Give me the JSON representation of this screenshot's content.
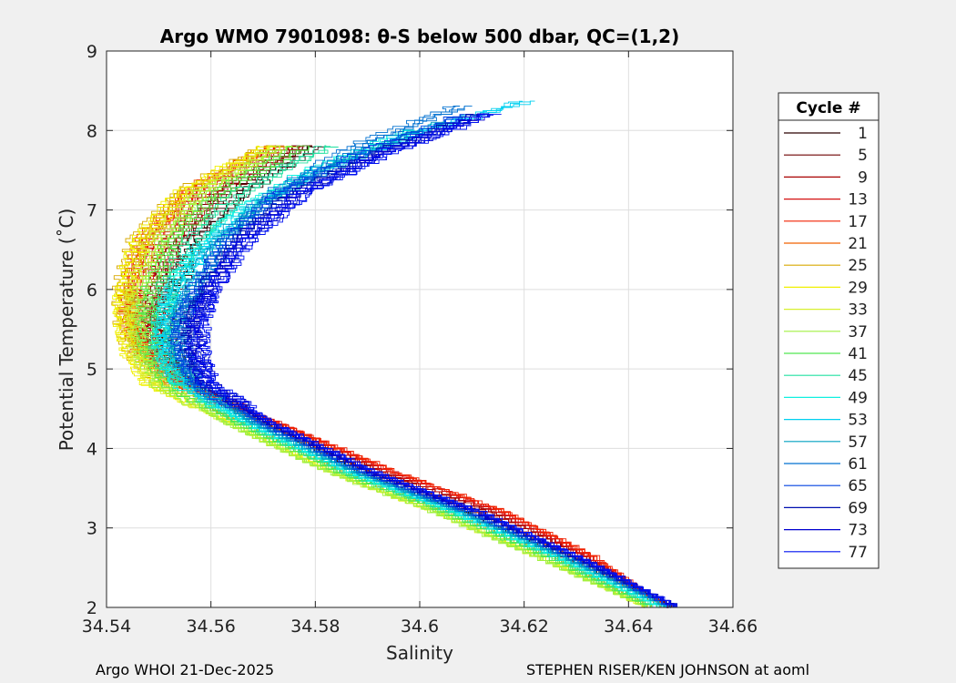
{
  "chart_data": {
    "type": "line",
    "title": "Argo WMO 7901098: θ-S below 500 dbar,  QC=(1,2)",
    "xlabel": "Salinity",
    "ylabel": "Potential Temperature (˚C)",
    "xlim": [
      34.54,
      34.66
    ],
    "ylim": [
      2,
      9
    ],
    "xticks": [
      34.54,
      34.56,
      34.58,
      34.6,
      34.62,
      34.64,
      34.66
    ],
    "xtick_labels": [
      "34.54",
      "34.56",
      "34.58",
      "34.6",
      "34.62",
      "34.64",
      "34.66"
    ],
    "yticks": [
      2,
      3,
      4,
      5,
      6,
      7,
      8,
      9
    ],
    "ytick_labels": [
      "2",
      "3",
      "4",
      "5",
      "6",
      "7",
      "8",
      "9"
    ],
    "grid": true,
    "legend": {
      "title": "Cycle #",
      "placement": "outside-right",
      "entries": [
        {
          "label": "1",
          "color": "#2a0000"
        },
        {
          "label": "5",
          "color": "#6e0000"
        },
        {
          "label": "9",
          "color": "#a80000"
        },
        {
          "label": "13",
          "color": "#d41010"
        },
        {
          "label": "17",
          "color": "#f02000"
        },
        {
          "label": "21",
          "color": "#f06000"
        },
        {
          "label": "25",
          "color": "#d8a800"
        },
        {
          "label": "29",
          "color": "#f0f000"
        },
        {
          "label": "33",
          "color": "#d8f030"
        },
        {
          "label": "37",
          "color": "#a0f040"
        },
        {
          "label": "41",
          "color": "#50e850"
        },
        {
          "label": "45",
          "color": "#20e0a0"
        },
        {
          "label": "49",
          "color": "#10f0e0"
        },
        {
          "label": "53",
          "color": "#00d0f0"
        },
        {
          "label": "57",
          "color": "#00a0c0"
        },
        {
          "label": "61",
          "color": "#0070d0"
        },
        {
          "label": "65",
          "color": "#0040e0"
        },
        {
          "label": "69",
          "color": "#0010b0"
        },
        {
          "label": "73",
          "color": "#0000d0"
        },
        {
          "label": "77",
          "color": "#0010f0"
        }
      ]
    },
    "series": [
      {
        "cycle": "1",
        "color": "#2a0000",
        "points": [
          [
            34.58,
            7.8
          ],
          [
            34.566,
            7.2
          ],
          [
            34.557,
            6.6
          ],
          [
            34.553,
            6.0
          ],
          [
            34.551,
            5.6
          ],
          [
            34.552,
            5.2
          ],
          [
            34.556,
            4.8
          ],
          [
            34.57,
            4.3
          ],
          [
            34.588,
            3.7
          ],
          [
            34.608,
            3.2
          ],
          [
            34.628,
            2.6
          ],
          [
            34.648,
            2.0
          ]
        ]
      },
      {
        "cycle": "5",
        "color": "#6e0000",
        "points": [
          [
            34.578,
            7.8
          ],
          [
            34.562,
            7.2
          ],
          [
            34.554,
            6.6
          ],
          [
            34.55,
            6.0
          ],
          [
            34.549,
            5.6
          ],
          [
            34.55,
            5.2
          ],
          [
            34.555,
            4.8
          ],
          [
            34.57,
            4.3
          ],
          [
            34.59,
            3.7
          ],
          [
            34.611,
            3.2
          ],
          [
            34.63,
            2.6
          ],
          [
            34.648,
            2.0
          ]
        ]
      },
      {
        "cycle": "9",
        "color": "#a80000",
        "points": [
          [
            34.576,
            7.8
          ],
          [
            34.56,
            7.2
          ],
          [
            34.552,
            6.6
          ],
          [
            34.548,
            6.0
          ],
          [
            34.547,
            5.6
          ],
          [
            34.549,
            5.2
          ],
          [
            34.555,
            4.8
          ],
          [
            34.572,
            4.3
          ],
          [
            34.592,
            3.7
          ],
          [
            34.613,
            3.2
          ],
          [
            34.632,
            2.6
          ],
          [
            34.647,
            2.0
          ]
        ]
      },
      {
        "cycle": "13",
        "color": "#d41010",
        "points": [
          [
            34.574,
            7.8
          ],
          [
            34.558,
            7.2
          ],
          [
            34.55,
            6.6
          ],
          [
            34.546,
            6.0
          ],
          [
            34.546,
            5.6
          ],
          [
            34.548,
            5.2
          ],
          [
            34.555,
            4.8
          ],
          [
            34.573,
            4.3
          ],
          [
            34.594,
            3.7
          ],
          [
            34.615,
            3.2
          ],
          [
            34.633,
            2.6
          ],
          [
            34.647,
            2.0
          ]
        ]
      },
      {
        "cycle": "17",
        "color": "#f02000",
        "points": [
          [
            34.573,
            7.8
          ],
          [
            34.556,
            7.2
          ],
          [
            34.548,
            6.6
          ],
          [
            34.545,
            6.0
          ],
          [
            34.545,
            5.6
          ],
          [
            34.547,
            5.2
          ],
          [
            34.554,
            4.8
          ],
          [
            34.573,
            4.3
          ],
          [
            34.595,
            3.7
          ],
          [
            34.616,
            3.2
          ],
          [
            34.634,
            2.6
          ],
          [
            34.647,
            2.0
          ]
        ]
      },
      {
        "cycle": "21",
        "color": "#f06000",
        "points": [
          [
            34.572,
            7.8
          ],
          [
            34.555,
            7.2
          ],
          [
            34.547,
            6.6
          ],
          [
            34.544,
            6.0
          ],
          [
            34.544,
            5.6
          ],
          [
            34.546,
            5.2
          ],
          [
            34.552,
            4.8
          ],
          [
            34.57,
            4.3
          ],
          [
            34.59,
            3.7
          ],
          [
            34.61,
            3.2
          ],
          [
            34.63,
            2.6
          ],
          [
            34.646,
            2.0
          ]
        ]
      },
      {
        "cycle": "25",
        "color": "#d8a800",
        "points": [
          [
            34.571,
            7.8
          ],
          [
            34.554,
            7.2
          ],
          [
            34.546,
            6.6
          ],
          [
            34.543,
            6.0
          ],
          [
            34.543,
            5.6
          ],
          [
            34.545,
            5.2
          ],
          [
            34.55,
            4.8
          ],
          [
            34.566,
            4.3
          ],
          [
            34.585,
            3.7
          ],
          [
            34.605,
            3.2
          ],
          [
            34.626,
            2.6
          ],
          [
            34.644,
            2.0
          ]
        ]
      },
      {
        "cycle": "29",
        "color": "#f0f000",
        "points": [
          [
            34.572,
            7.8
          ],
          [
            34.555,
            7.2
          ],
          [
            34.547,
            6.6
          ],
          [
            34.544,
            6.0
          ],
          [
            34.544,
            5.6
          ],
          [
            34.545,
            5.2
          ],
          [
            34.549,
            4.8
          ],
          [
            34.564,
            4.3
          ],
          [
            34.583,
            3.7
          ],
          [
            34.603,
            3.2
          ],
          [
            34.624,
            2.6
          ],
          [
            34.643,
            2.0
          ]
        ]
      },
      {
        "cycle": "33",
        "color": "#d8f030",
        "points": [
          [
            34.573,
            7.8
          ],
          [
            34.557,
            7.2
          ],
          [
            34.549,
            6.6
          ],
          [
            34.545,
            6.0
          ],
          [
            34.545,
            5.6
          ],
          [
            34.546,
            5.2
          ],
          [
            34.549,
            4.8
          ],
          [
            34.563,
            4.3
          ],
          [
            34.582,
            3.7
          ],
          [
            34.602,
            3.2
          ],
          [
            34.623,
            2.6
          ],
          [
            34.643,
            2.0
          ]
        ]
      },
      {
        "cycle": "37",
        "color": "#a0f040",
        "points": [
          [
            34.575,
            7.8
          ],
          [
            34.559,
            7.2
          ],
          [
            34.551,
            6.6
          ],
          [
            34.547,
            6.0
          ],
          [
            34.546,
            5.6
          ],
          [
            34.547,
            5.2
          ],
          [
            34.55,
            4.8
          ],
          [
            34.563,
            4.3
          ],
          [
            34.582,
            3.7
          ],
          [
            34.602,
            3.2
          ],
          [
            34.623,
            2.6
          ],
          [
            34.643,
            2.0
          ]
        ]
      },
      {
        "cycle": "41",
        "color": "#50e850",
        "points": [
          [
            34.578,
            7.8
          ],
          [
            34.562,
            7.2
          ],
          [
            34.553,
            6.6
          ],
          [
            34.549,
            6.0
          ],
          [
            34.548,
            5.6
          ],
          [
            34.549,
            5.2
          ],
          [
            34.552,
            4.8
          ],
          [
            34.565,
            4.3
          ],
          [
            34.584,
            3.7
          ],
          [
            34.604,
            3.2
          ],
          [
            34.625,
            2.6
          ],
          [
            34.644,
            2.0
          ]
        ]
      },
      {
        "cycle": "45",
        "color": "#20e0a0",
        "points": [
          [
            34.582,
            7.8
          ],
          [
            34.565,
            7.2
          ],
          [
            34.556,
            6.6
          ],
          [
            34.551,
            6.0
          ],
          [
            34.55,
            5.6
          ],
          [
            34.55,
            5.2
          ],
          [
            34.553,
            4.8
          ],
          [
            34.566,
            4.3
          ],
          [
            34.585,
            3.7
          ],
          [
            34.605,
            3.2
          ],
          [
            34.626,
            2.6
          ],
          [
            34.645,
            2.0
          ]
        ]
      },
      {
        "cycle": "49",
        "color": "#10f0e0",
        "points": [
          [
            34.6,
            8.0
          ],
          [
            34.58,
            7.5
          ],
          [
            34.566,
            7.0
          ],
          [
            34.558,
            6.5
          ],
          [
            34.553,
            6.0
          ],
          [
            34.551,
            5.6
          ],
          [
            34.551,
            5.2
          ],
          [
            34.554,
            4.8
          ],
          [
            34.567,
            4.3
          ],
          [
            34.586,
            3.7
          ],
          [
            34.606,
            3.2
          ],
          [
            34.627,
            2.6
          ],
          [
            34.646,
            2.0
          ]
        ]
      },
      {
        "cycle": "53",
        "color": "#00d0f0",
        "points": [
          [
            34.621,
            8.36
          ],
          [
            34.602,
            8.0
          ],
          [
            34.582,
            7.5
          ],
          [
            34.568,
            7.0
          ],
          [
            34.559,
            6.5
          ],
          [
            34.554,
            6.0
          ],
          [
            34.552,
            5.6
          ],
          [
            34.552,
            5.2
          ],
          [
            34.555,
            4.8
          ],
          [
            34.568,
            4.3
          ],
          [
            34.587,
            3.7
          ],
          [
            34.607,
            3.2
          ],
          [
            34.628,
            2.6
          ],
          [
            34.647,
            2.0
          ]
        ]
      },
      {
        "cycle": "57",
        "color": "#00a0c0",
        "points": [
          [
            34.605,
            8.1
          ],
          [
            34.585,
            7.6
          ],
          [
            34.57,
            7.1
          ],
          [
            34.561,
            6.6
          ],
          [
            34.556,
            6.0
          ],
          [
            34.553,
            5.6
          ],
          [
            34.553,
            5.2
          ],
          [
            34.556,
            4.8
          ],
          [
            34.568,
            4.3
          ],
          [
            34.587,
            3.7
          ],
          [
            34.607,
            3.2
          ],
          [
            34.628,
            2.6
          ],
          [
            34.647,
            2.0
          ]
        ]
      },
      {
        "cycle": "61",
        "color": "#0070d0",
        "points": [
          [
            34.608,
            8.3
          ],
          [
            34.588,
            7.8
          ],
          [
            34.572,
            7.2
          ],
          [
            34.562,
            6.6
          ],
          [
            34.557,
            6.0
          ],
          [
            34.554,
            5.6
          ],
          [
            34.554,
            5.2
          ],
          [
            34.557,
            4.8
          ],
          [
            34.569,
            4.3
          ],
          [
            34.588,
            3.7
          ],
          [
            34.608,
            3.2
          ],
          [
            34.629,
            2.6
          ],
          [
            34.648,
            2.0
          ]
        ]
      },
      {
        "cycle": "65",
        "color": "#0040e0",
        "points": [
          [
            34.61,
            8.2
          ],
          [
            34.59,
            7.7
          ],
          [
            34.574,
            7.2
          ],
          [
            34.564,
            6.6
          ],
          [
            34.558,
            6.0
          ],
          [
            34.555,
            5.6
          ],
          [
            34.555,
            5.2
          ],
          [
            34.558,
            4.8
          ],
          [
            34.57,
            4.3
          ],
          [
            34.589,
            3.7
          ],
          [
            34.609,
            3.2
          ],
          [
            34.63,
            2.6
          ],
          [
            34.648,
            2.0
          ]
        ]
      },
      {
        "cycle": "69",
        "color": "#0010b0",
        "points": [
          [
            34.612,
            8.2
          ],
          [
            34.592,
            7.7
          ],
          [
            34.576,
            7.2
          ],
          [
            34.565,
            6.6
          ],
          [
            34.559,
            6.0
          ],
          [
            34.556,
            5.6
          ],
          [
            34.556,
            5.2
          ],
          [
            34.559,
            4.8
          ],
          [
            34.571,
            4.3
          ],
          [
            34.59,
            3.7
          ],
          [
            34.61,
            3.2
          ],
          [
            34.63,
            2.6
          ],
          [
            34.649,
            2.0
          ]
        ]
      },
      {
        "cycle": "73",
        "color": "#0000d0",
        "points": [
          [
            34.613,
            8.2
          ],
          [
            34.593,
            7.7
          ],
          [
            34.577,
            7.2
          ],
          [
            34.566,
            6.6
          ],
          [
            34.56,
            6.0
          ],
          [
            34.557,
            5.6
          ],
          [
            34.557,
            5.2
          ],
          [
            34.559,
            4.8
          ],
          [
            34.571,
            4.3
          ],
          [
            34.59,
            3.7
          ],
          [
            34.61,
            3.2
          ],
          [
            34.631,
            2.6
          ],
          [
            34.649,
            2.0
          ]
        ]
      },
      {
        "cycle": "77",
        "color": "#0010f0",
        "points": [
          [
            34.614,
            8.2
          ],
          [
            34.594,
            7.7
          ],
          [
            34.578,
            7.2
          ],
          [
            34.567,
            6.6
          ],
          [
            34.561,
            6.0
          ],
          [
            34.558,
            5.6
          ],
          [
            34.558,
            5.2
          ],
          [
            34.56,
            4.8
          ],
          [
            34.572,
            4.3
          ],
          [
            34.591,
            3.7
          ],
          [
            34.611,
            3.2
          ],
          [
            34.631,
            2.6
          ],
          [
            34.649,
            2.0
          ]
        ]
      }
    ]
  },
  "footer": {
    "left": "Argo WHOI 21-Dec-2025",
    "right": "STEPHEN RISER/KEN JOHNSON at aoml"
  }
}
